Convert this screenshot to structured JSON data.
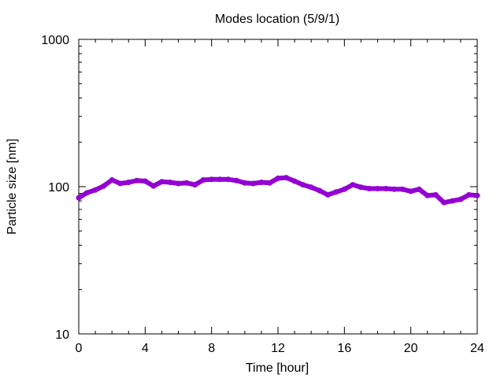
{
  "chart_data": {
    "type": "line",
    "title": "Modes location (5/9/1)",
    "xlabel": "Time [hour]",
    "ylabel": "Particle size [nm]",
    "xlim": [
      0,
      24
    ],
    "ylim": [
      10,
      1000
    ],
    "yscale": "log",
    "x_ticks": [
      0,
      4,
      8,
      12,
      16,
      20,
      24
    ],
    "y_ticks": [
      10,
      100,
      1000
    ],
    "x_tick_labels": [
      "0",
      "4",
      "8",
      "12",
      "16",
      "20",
      "24"
    ],
    "y_tick_labels": [
      "10",
      "100",
      "1000"
    ],
    "grid": false,
    "legend": "none",
    "series": [
      {
        "color": "#9400d3",
        "marker": "star",
        "x": [
          0,
          0.5,
          1,
          1.5,
          2,
          2.5,
          3,
          3.5,
          4,
          4.5,
          5,
          5.5,
          6,
          6.5,
          7,
          7.5,
          8,
          8.5,
          9,
          9.5,
          10,
          10.5,
          11,
          11.5,
          12,
          12.5,
          13,
          13.5,
          14,
          14.5,
          15,
          15.5,
          16,
          16.5,
          17,
          17.5,
          18,
          18.5,
          19,
          19.5,
          20,
          20.5,
          21,
          21.5,
          22,
          22.5,
          23,
          23.5,
          24
        ],
        "y": [
          84,
          91,
          95,
          101,
          111,
          105,
          107,
          110,
          109,
          101,
          108,
          107,
          105,
          106,
          103,
          111,
          112,
          112,
          112,
          110,
          106,
          105,
          107,
          106,
          114,
          115,
          109,
          103,
          99,
          94,
          88,
          92,
          96,
          103,
          99,
          97,
          97,
          97,
          96,
          96,
          93,
          96,
          87,
          88,
          78,
          80,
          82,
          88,
          87
        ]
      }
    ]
  }
}
